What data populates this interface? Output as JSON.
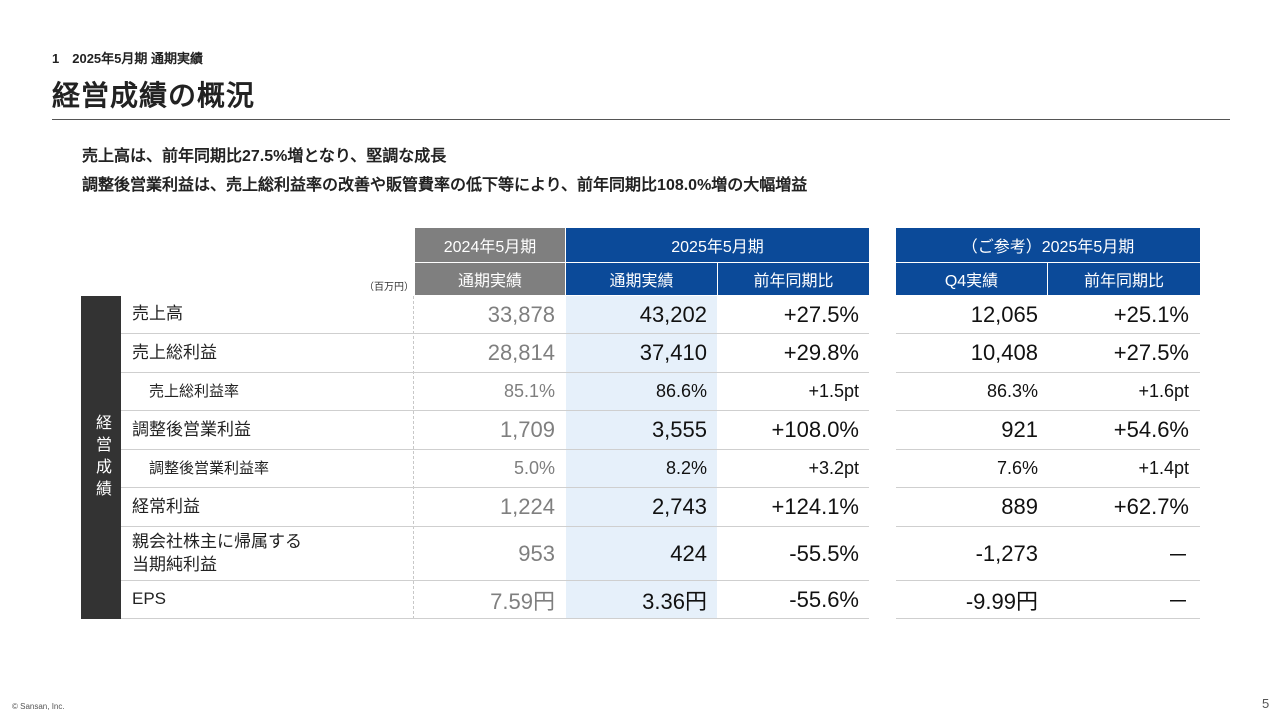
{
  "section_label": "1　2025年5月期 通期実績",
  "page_title": "経営成績の概況",
  "lead_lines": [
    "売上高は、前年同期比27.5%増となり、堅調な成長",
    "調整後営業利益は、売上総利益率の改善や販管費率の低下等により、前年同期比108.0%増の大幅増益"
  ],
  "unit_note": "（百万円）",
  "table": {
    "group_fy2024": "2024年5月期",
    "group_fy2025": "2025年5月期",
    "group_ref": "（ご参考）2025年5月期",
    "col_full_year_2024": "通期実績",
    "col_full_year_2025": "通期実績",
    "col_yoy": "前年同期比",
    "col_q4": "Q4実績",
    "col_q4_yoy": "前年同期比",
    "side_label": "経営成績",
    "rows": [
      {
        "label": "売上高",
        "fy2024": "33,878",
        "fy2025": "43,202",
        "yoy": "+27.5%",
        "q4": "12,065",
        "q4_yoy": "+25.1%"
      },
      {
        "label": "売上総利益",
        "fy2024": "28,814",
        "fy2025": "37,410",
        "yoy": "+29.8%",
        "q4": "10,408",
        "q4_yoy": "+27.5%"
      },
      {
        "label": "売上総利益率",
        "fy2024": "85.1%",
        "fy2025": "86.6%",
        "yoy": "+1.5pt",
        "q4": "86.3%",
        "q4_yoy": "+1.6pt"
      },
      {
        "label": "調整後営業利益",
        "fy2024": "1,709",
        "fy2025": "3,555",
        "yoy": "+108.0%",
        "q4": "921",
        "q4_yoy": "+54.6%"
      },
      {
        "label": "調整後営業利益率",
        "fy2024": "5.0%",
        "fy2025": "8.2%",
        "yoy": "+3.2pt",
        "q4": "7.6%",
        "q4_yoy": "+1.4pt"
      },
      {
        "label": "経常利益",
        "fy2024": "1,224",
        "fy2025": "2,743",
        "yoy": "+124.1%",
        "q4": "889",
        "q4_yoy": "+62.7%"
      },
      {
        "label_line1": "親会社株主に帰属する",
        "label_line2": "当期純利益",
        "fy2024": "953",
        "fy2025": "424",
        "yoy": "-55.5%",
        "q4": "-1,273",
        "q4_yoy": "－"
      },
      {
        "label": "EPS",
        "fy2024": "7.59円",
        "fy2025": "3.36円",
        "yoy": "-55.6%",
        "q4": "-9.99円",
        "q4_yoy": "－"
      }
    ]
  },
  "footer": {
    "copyright": "© Sansan, Inc.",
    "page_number": "5"
  }
}
